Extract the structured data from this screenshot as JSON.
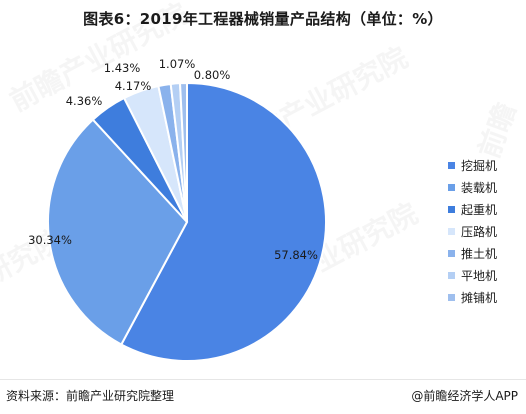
{
  "chart_data": {
    "type": "pie",
    "title": "图表6：2019年工程器械销量产品结构（单位：%）",
    "slices": [
      {
        "label": "挖掘机",
        "value": 57.84,
        "value_label": "57.84%",
        "color": "#4a84e4"
      },
      {
        "label": "装载机",
        "value": 30.34,
        "value_label": "30.34%",
        "color": "#6a9fe8"
      },
      {
        "label": "起重机",
        "value": 4.36,
        "value_label": "4.36%",
        "color": "#3e7ddd"
      },
      {
        "label": "压路机",
        "value": 4.17,
        "value_label": "4.17%",
        "color": "#d6e6fb"
      },
      {
        "label": "推土机",
        "value": 1.43,
        "value_label": "1.43%",
        "color": "#8ab2ec"
      },
      {
        "label": "平地机",
        "value": 1.07,
        "value_label": "1.07%",
        "color": "#b4cff4"
      },
      {
        "label": "摊铺机",
        "value": 0.8,
        "value_label": "0.80%",
        "color": "#9fbfee"
      }
    ],
    "legend_position": "right"
  },
  "footer": {
    "source": "资料来源：前瞻产业研究院整理",
    "brand": "@前瞻经济学人APP"
  },
  "watermark": {
    "brand": "前瞻产业研究院",
    "partial": "研究院",
    "short": "前瞻"
  }
}
